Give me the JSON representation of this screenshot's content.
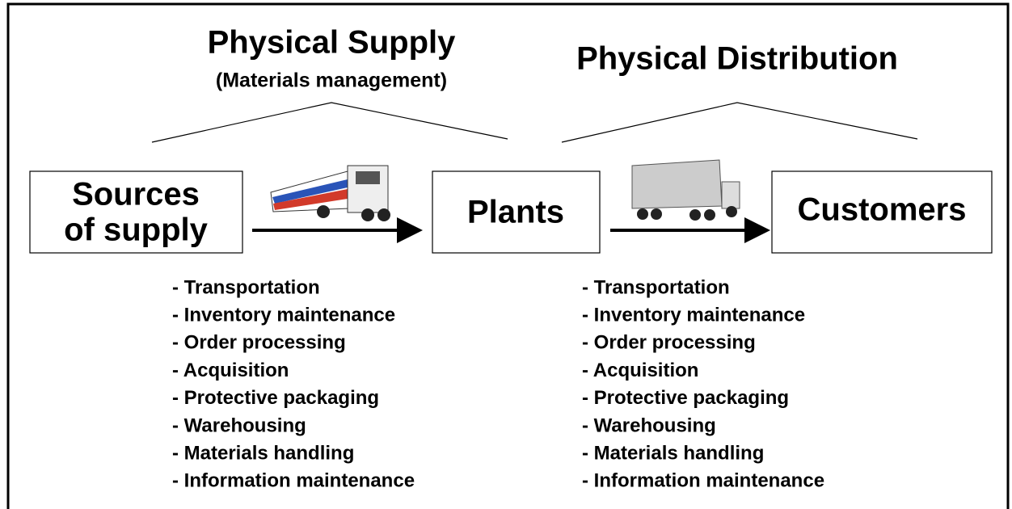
{
  "header": {
    "left_title": "Physical Supply",
    "left_subtitle": "(Materials management)",
    "right_title": "Physical Distribution"
  },
  "nodes": [
    {
      "label": [
        "Sources",
        "of supply"
      ]
    },
    {
      "label": [
        "Plants"
      ]
    },
    {
      "label": [
        "Customers"
      ]
    }
  ],
  "lists": [
    {
      "items": [
        "- Transportation",
        "- Inventory maintenance",
        "- Order processing",
        "- Acquisition",
        "- Protective packaging",
        "- Warehousing",
        "- Materials handling",
        "- Information maintenance"
      ]
    },
    {
      "items": [
        "- Transportation",
        "- Inventory maintenance",
        "- Order processing",
        "- Acquisition",
        "- Protective packaging",
        "- Warehousing",
        "- Materials handling",
        "- Information maintenance"
      ]
    }
  ]
}
